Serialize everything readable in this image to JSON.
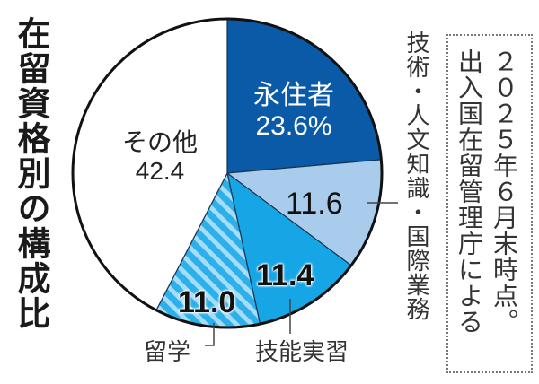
{
  "title": "在留資格別の構成比",
  "source_note": {
    "line1": "２０２５年６月末時点。",
    "line2": "出入国在留管理庁による"
  },
  "labels": {
    "eijusha_name": "永住者",
    "eijusha_value": "23.6%",
    "gijutsu_name": "技術・人文知識・国際業務",
    "gijutsu_value": "11.6",
    "ginou_name": "技能実習",
    "ginou_value": "11.4",
    "ryugaku_name": "留学",
    "ryugaku_value": "11.0",
    "sonota_name": "その他",
    "sonota_value": "42.4"
  },
  "colors": {
    "eijusha": "#0a5aa8",
    "gijutsu": "#a9ccec",
    "ginou": "#16a6e6",
    "ryugaku": "#2bb0ea",
    "ryugaku_stripe": "#a6dcf6",
    "sonota": "#ffffff",
    "outline": "#111111"
  },
  "chart_data": {
    "type": "pie",
    "title": "在留資格別の構成比",
    "note": "2025年6月末時点。出入国在留管理庁による",
    "unit": "%",
    "start_angle_deg": 0,
    "direction": "clockwise",
    "slices": [
      {
        "label": "永住者",
        "value": 23.6
      },
      {
        "label": "技術・人文知識・国際業務",
        "value": 11.6
      },
      {
        "label": "技能実習",
        "value": 11.4
      },
      {
        "label": "留学",
        "value": 11.0,
        "pattern": "diagonal-stripes"
      },
      {
        "label": "その他",
        "value": 42.4
      }
    ]
  }
}
